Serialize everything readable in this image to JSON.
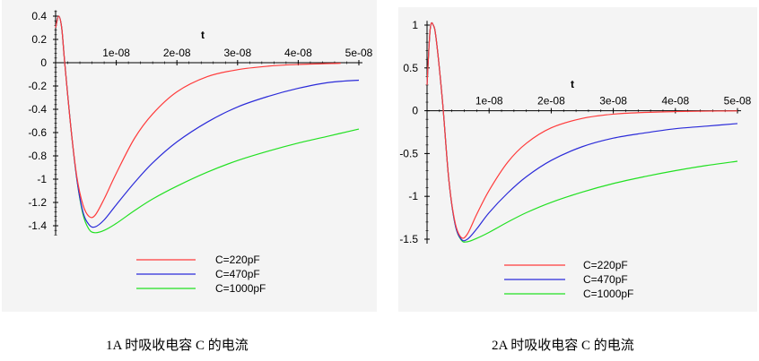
{
  "captions": {
    "left": "1A 时吸收电容 C 的电流",
    "right": "2A 时吸收电容 C 的电流"
  },
  "colors": {
    "c220": "#ff3b3b",
    "c470": "#2b2bd9",
    "c1000": "#22e022",
    "axis": "#000000",
    "background": "#f4f4f4"
  },
  "chart_data": [
    {
      "type": "line",
      "title": "",
      "xlabel": "t",
      "ylabel": "",
      "xlim": [
        0,
        5e-08
      ],
      "ylim": [
        -1.5,
        0.45
      ],
      "x_ticks": [
        {
          "value": 1e-08,
          "label": "1e-08"
        },
        {
          "value": 2e-08,
          "label": "2e-08"
        },
        {
          "value": 3e-08,
          "label": "3e-08"
        },
        {
          "value": 4e-08,
          "label": "4e-08"
        },
        {
          "value": 5e-08,
          "label": "5e-08"
        }
      ],
      "y_ticks": [
        {
          "value": 0.4,
          "label": "0.4"
        },
        {
          "value": 0.2,
          "label": "0.2"
        },
        {
          "value": 0,
          "label": "0"
        },
        {
          "value": -0.2,
          "label": "-0.2"
        },
        {
          "value": -0.4,
          "label": "-0.4"
        },
        {
          "value": -0.6,
          "label": "-0.6"
        },
        {
          "value": -0.8,
          "label": "-0.8"
        },
        {
          "value": -1,
          "label": "-1"
        },
        {
          "value": -1.2,
          "label": "-1.2"
        },
        {
          "value": -1.4,
          "label": "-1.4"
        }
      ],
      "legend_position": "bottom",
      "series": [
        {
          "name": "C=220pF",
          "color": "#ff3b3b",
          "x": [
            0,
            5e-10,
            1e-09,
            1.5e-09,
            2.5e-09,
            3.5e-09,
            4.5e-09,
            5.5e-09,
            6.5e-09,
            8e-09,
            1e-08,
            1.3e-08,
            1.6e-08,
            2e-08,
            2.5e-08,
            3e-08,
            3.5e-08,
            4e-08,
            4.7e-08
          ],
          "y": [
            0.3,
            0.4,
            0.3,
            0.0,
            -0.55,
            -0.98,
            -1.22,
            -1.32,
            -1.31,
            -1.17,
            -0.95,
            -0.65,
            -0.44,
            -0.25,
            -0.12,
            -0.06,
            -0.03,
            -0.015,
            -0.005
          ]
        },
        {
          "name": "C=470pF",
          "color": "#2b2bd9",
          "x": [
            0,
            5e-10,
            1e-09,
            1.5e-09,
            2.5e-09,
            3.5e-09,
            4.5e-09,
            5.5e-09,
            6.5e-09,
            8e-09,
            1e-08,
            1.3e-08,
            1.6e-08,
            2e-08,
            2.5e-08,
            3e-08,
            3.5e-08,
            4e-08,
            4.5e-08,
            5e-08
          ],
          "y": [
            0.3,
            0.4,
            0.3,
            0.0,
            -0.55,
            -1.0,
            -1.28,
            -1.39,
            -1.41,
            -1.35,
            -1.22,
            -1.03,
            -0.86,
            -0.68,
            -0.51,
            -0.38,
            -0.29,
            -0.22,
            -0.17,
            -0.15
          ]
        },
        {
          "name": "C=1000pF",
          "color": "#22e022",
          "x": [
            0,
            5e-10,
            1e-09,
            1.5e-09,
            2.5e-09,
            3.5e-09,
            4.5e-09,
            5.5e-09,
            6.5e-09,
            8e-09,
            1e-08,
            1.3e-08,
            1.6e-08,
            2e-08,
            2.5e-08,
            3e-08,
            3.5e-08,
            4e-08,
            4.5e-08,
            5e-08
          ],
          "y": [
            0.3,
            0.4,
            0.3,
            0.0,
            -0.55,
            -1.0,
            -1.3,
            -1.43,
            -1.46,
            -1.44,
            -1.38,
            -1.27,
            -1.17,
            -1.06,
            -0.94,
            -0.84,
            -0.76,
            -0.69,
            -0.63,
            -0.57
          ]
        }
      ]
    },
    {
      "type": "line",
      "title": "",
      "xlabel": "t",
      "ylabel": "",
      "xlim": [
        0,
        5e-08
      ],
      "ylim": [
        -1.5,
        1.05
      ],
      "x_ticks": [
        {
          "value": 1e-08,
          "label": "1e-08"
        },
        {
          "value": 2e-08,
          "label": "2e-08"
        },
        {
          "value": 3e-08,
          "label": "3e-08"
        },
        {
          "value": 4e-08,
          "label": "4e-08"
        },
        {
          "value": 5e-08,
          "label": "5e-08"
        }
      ],
      "y_ticks": [
        {
          "value": 1,
          "label": "1"
        },
        {
          "value": 0.5,
          "label": "0.5"
        },
        {
          "value": 0,
          "label": "0"
        },
        {
          "value": -0.5,
          "label": "-0.5"
        },
        {
          "value": -1,
          "label": "-1"
        },
        {
          "value": -1.5,
          "label": "-1.5"
        }
      ],
      "legend_position": "bottom",
      "series": [
        {
          "name": "C=220pF",
          "color": "#ff3b3b",
          "x": [
            0,
            5e-10,
            1e-09,
            1.5e-09,
            2.5e-09,
            3.5e-09,
            4.5e-09,
            5.5e-09,
            6.5e-09,
            8e-09,
            1e-08,
            1.3e-08,
            1.6e-08,
            2e-08,
            2.5e-08,
            3e-08,
            3.5e-08,
            4e-08,
            4.5e-08,
            5e-08
          ],
          "y": [
            0.3,
            0.95,
            1.0,
            0.82,
            0.1,
            -0.8,
            -1.3,
            -1.48,
            -1.44,
            -1.21,
            -0.93,
            -0.6,
            -0.38,
            -0.2,
            -0.09,
            -0.04,
            -0.02,
            -0.01,
            -0.005,
            -0.002
          ]
        },
        {
          "name": "C=470pF",
          "color": "#2b2bd9",
          "x": [
            0,
            5e-10,
            1e-09,
            1.5e-09,
            2.5e-09,
            3.5e-09,
            4.5e-09,
            5.5e-09,
            6.5e-09,
            8e-09,
            1e-08,
            1.3e-08,
            1.6e-08,
            2e-08,
            2.5e-08,
            3e-08,
            3.5e-08,
            4e-08,
            4.5e-08,
            5e-08
          ],
          "y": [
            0.3,
            0.95,
            1.0,
            0.82,
            0.1,
            -0.8,
            -1.32,
            -1.5,
            -1.5,
            -1.38,
            -1.19,
            -0.96,
            -0.77,
            -0.58,
            -0.42,
            -0.32,
            -0.26,
            -0.21,
            -0.18,
            -0.15
          ]
        },
        {
          "name": "C=1000pF",
          "color": "#22e022",
          "x": [
            0,
            5e-10,
            1e-09,
            1.5e-09,
            2.5e-09,
            3.5e-09,
            4.5e-09,
            5.5e-09,
            6.5e-09,
            8e-09,
            1e-08,
            1.3e-08,
            1.6e-08,
            2e-08,
            2.5e-08,
            3e-08,
            3.5e-08,
            4e-08,
            4.5e-08,
            5e-08
          ],
          "y": [
            0.3,
            0.95,
            1.0,
            0.82,
            0.1,
            -0.8,
            -1.32,
            -1.51,
            -1.53,
            -1.49,
            -1.42,
            -1.3,
            -1.19,
            -1.07,
            -0.95,
            -0.85,
            -0.77,
            -0.7,
            -0.64,
            -0.59
          ]
        }
      ]
    }
  ]
}
